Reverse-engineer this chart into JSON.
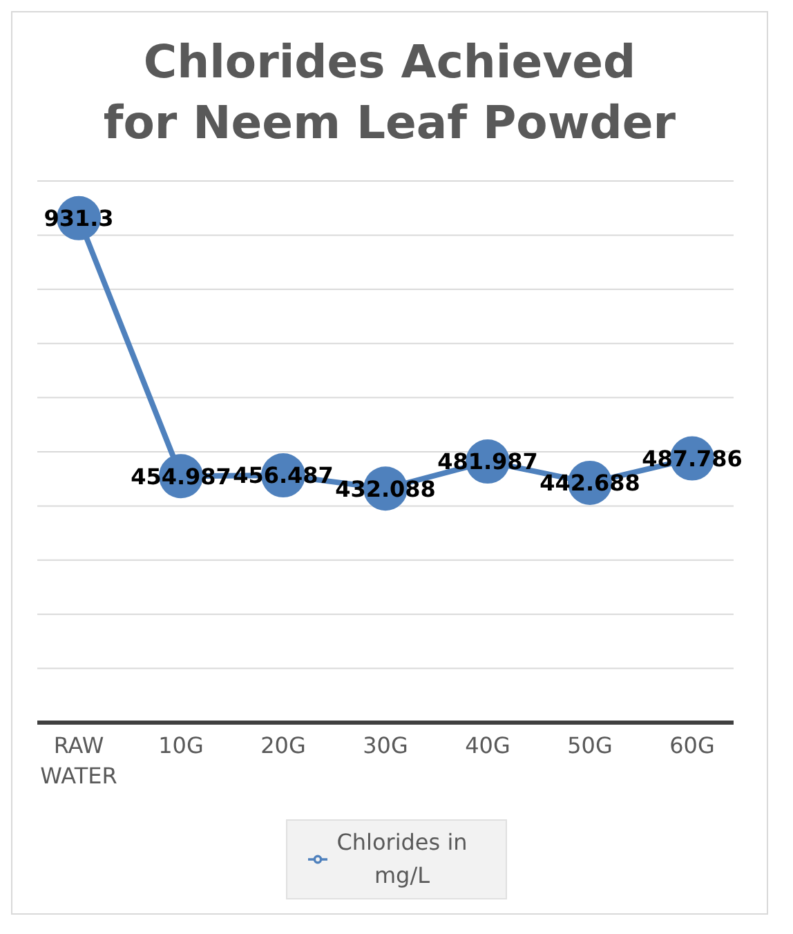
{
  "chart_data": {
    "type": "line",
    "title": "Chlorides Achieved for Neem Leaf Powder",
    "categories": [
      "RAW WATER",
      "10G",
      "20G",
      "30G",
      "40G",
      "50G",
      "60G"
    ],
    "series": [
      {
        "name": "Chlorides in mg/L",
        "color": "#4f81bd",
        "values": [
          931.3,
          454.987,
          456.487,
          432.088,
          481.987,
          442.688,
          487.786
        ]
      }
    ],
    "ylim": [
      0,
      1000
    ],
    "yticks": [
      {
        "value": 0,
        "label": null
      },
      {
        "value": 100,
        "label": null
      },
      {
        "value": 200,
        "label": null
      },
      {
        "value": 300,
        "label": null
      },
      {
        "value": 400,
        "label": null
      },
      {
        "value": 500,
        "label": null
      },
      {
        "value": 600,
        "label": null
      },
      {
        "value": 700,
        "label": null
      },
      {
        "value": 800,
        "label": null
      },
      {
        "value": 900,
        "label": null
      },
      {
        "value": 1000,
        "label": null
      }
    ],
    "tick_labels": "x",
    "grid": "y",
    "legend": "bottom",
    "marker": "circle",
    "line_style": "solid",
    "data_labels": true
  }
}
